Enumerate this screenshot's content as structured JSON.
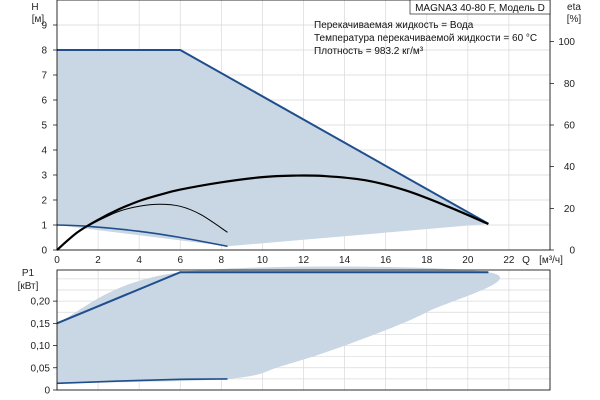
{
  "title": "MAGNA3 40-80 F, Модель D",
  "info_lines": [
    "Перекачиваемая жидкость = Вода",
    "Температура перекачиваемой жидкости = 60 °C",
    "Плотность = 983.2 кг/м³"
  ],
  "colors": {
    "curve_blue": "#1f4e8c",
    "fill": "#c9d6e3",
    "grid": "#d9d9d9",
    "curve_black": "#000000"
  },
  "chart_data": [
    {
      "type": "area",
      "name": "head",
      "ylabel": "H",
      "yunit": "[м]",
      "y2label": "eta",
      "y2unit": "[%]",
      "xlabel": "Q",
      "xunit": "[м³/ч]",
      "xlim": [
        0,
        24
      ],
      "ylim": [
        0,
        10
      ],
      "y2lim": [
        0,
        120
      ],
      "x_ticks": [
        "0",
        "2",
        "4",
        "6",
        "8",
        "10",
        "12",
        "14",
        "16",
        "18",
        "20",
        "22"
      ],
      "y_ticks": [
        "0",
        "1",
        "2",
        "3",
        "4",
        "5",
        "6",
        "7",
        "8",
        "9"
      ],
      "y2_ticks": [
        "0",
        "20",
        "40",
        "60",
        "80",
        "100"
      ],
      "grid": true,
      "envelope": {
        "x": [
          0,
          6,
          21,
          8.3,
          0
        ],
        "y": [
          8,
          8,
          1.05,
          0.15,
          1
        ]
      },
      "max_curve": {
        "x": [
          0,
          6,
          21
        ],
        "y": [
          8,
          8,
          1.05
        ]
      },
      "min_curve": {
        "x": [
          0,
          1.5,
          4,
          6,
          8.3
        ],
        "y": [
          1,
          0.95,
          0.75,
          0.5,
          0.15
        ]
      },
      "eta_curve": {
        "x": [
          0,
          1,
          2,
          3,
          4,
          5,
          6,
          8,
          10,
          11.5,
          13,
          15,
          17,
          19,
          21
        ],
        "y": [
          0,
          8.5,
          14.5,
          19.5,
          23.5,
          26.5,
          29,
          32.5,
          35,
          35.7,
          35.5,
          33.5,
          28.5,
          21,
          12.5
        ]
      },
      "eta_min_curve": {
        "x": [
          0,
          1,
          2,
          3,
          4,
          5,
          6,
          7,
          8.3
        ],
        "y": [
          0,
          8.5,
          14,
          18.5,
          21,
          22,
          21,
          17,
          8.5
        ]
      }
    },
    {
      "type": "area",
      "name": "power",
      "ylabel": "P1",
      "yunit": "[кВт]",
      "xlim": [
        0,
        24
      ],
      "ylim": [
        0,
        0.27
      ],
      "y_ticks": [
        "0",
        "0,05",
        "0,10",
        "0,15",
        "0,20"
      ],
      "y_values": [
        0,
        0.05,
        0.1,
        0.15,
        0.2
      ],
      "grid": true,
      "envelope": {
        "x": [
          0,
          6,
          21,
          18,
          14,
          11,
          8.3,
          0
        ],
        "y": [
          0.15,
          0.265,
          0.265,
          0.175,
          0.1,
          0.055,
          0.025,
          0.015
        ]
      },
      "max_curve": {
        "x": [
          0,
          6,
          21
        ],
        "y": [
          0.15,
          0.265,
          0.265
        ]
      },
      "min_curve": {
        "x": [
          0,
          3,
          6,
          8.3
        ],
        "y": [
          0.015,
          0.02,
          0.024,
          0.025
        ]
      }
    }
  ]
}
